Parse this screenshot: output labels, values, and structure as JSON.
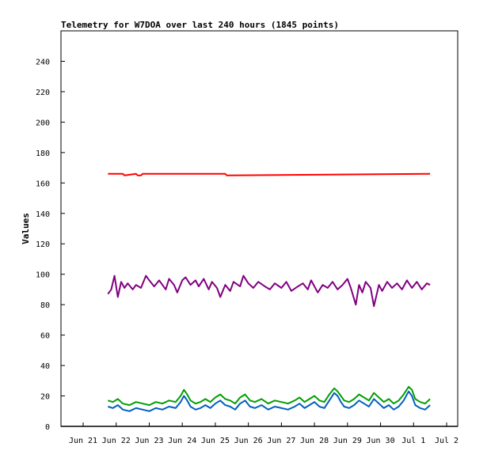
{
  "chart_data": {
    "type": "line",
    "title": "Telemetry for W7DOA over last 240 hours (1845 points)",
    "xlabel": "",
    "ylabel": "Values",
    "x_ticks": [
      "Jun 21",
      "Jun 22",
      "Jun 23",
      "Jun 24",
      "Jun 25",
      "Jun 26",
      "Jun 27",
      "Jun 28",
      "Jun 29",
      "Jun 30",
      "Jul 1",
      "Jul 2"
    ],
    "y_ticks": [
      "0",
      "20",
      "40",
      "60",
      "80",
      "100",
      "120",
      "140",
      "160",
      "180",
      "200",
      "220",
      "240"
    ],
    "xlim": [
      0,
      11
    ],
    "ylim": [
      0,
      260
    ],
    "grid": false,
    "legend": "none",
    "series": [
      {
        "color": "#ff0000",
        "x": [
          0.75,
          1.2,
          1.25,
          1.6,
          1.65,
          1.75,
          1.8,
          4.3,
          4.35,
          10.5
        ],
        "values": [
          166,
          166,
          165,
          166,
          165,
          165,
          166,
          166,
          165,
          166
        ]
      },
      {
        "color": "#800080",
        "x": [
          0.75,
          0.85,
          0.95,
          1.05,
          1.15,
          1.25,
          1.35,
          1.5,
          1.6,
          1.75,
          1.9,
          2.0,
          2.15,
          2.3,
          2.5,
          2.6,
          2.75,
          2.85,
          3.0,
          3.1,
          3.25,
          3.4,
          3.5,
          3.65,
          3.8,
          3.9,
          4.05,
          4.15,
          4.3,
          4.45,
          4.55,
          4.75,
          4.85,
          5.0,
          5.15,
          5.3,
          5.5,
          5.65,
          5.8,
          6.0,
          6.15,
          6.3,
          6.5,
          6.65,
          6.8,
          6.9,
          7.1,
          7.25,
          7.4,
          7.55,
          7.7,
          7.85,
          8.0,
          8.1,
          8.25,
          8.35,
          8.45,
          8.55,
          8.7,
          8.8,
          8.95,
          9.05,
          9.2,
          9.35,
          9.5,
          9.65,
          9.8,
          9.95,
          10.1,
          10.25,
          10.4,
          10.5
        ],
        "values": [
          87,
          90,
          99,
          85,
          95,
          91,
          94,
          90,
          93,
          91,
          99,
          96,
          92,
          96,
          90,
          97,
          93,
          88,
          96,
          98,
          93,
          96,
          92,
          97,
          90,
          95,
          91,
          85,
          93,
          89,
          95,
          92,
          99,
          94,
          91,
          95,
          92,
          90,
          94,
          91,
          95,
          89,
          92,
          94,
          90,
          96,
          88,
          93,
          91,
          95,
          90,
          93,
          97,
          91,
          80,
          93,
          88,
          95,
          91,
          79,
          93,
          89,
          95,
          91,
          94,
          90,
          96,
          91,
          95,
          90,
          94,
          93
        ]
      },
      {
        "color": "#00a000",
        "x": [
          0.75,
          0.9,
          1.05,
          1.2,
          1.4,
          1.6,
          1.8,
          2.0,
          2.2,
          2.4,
          2.6,
          2.8,
          2.95,
          3.05,
          3.15,
          3.25,
          3.4,
          3.55,
          3.7,
          3.85,
          4.0,
          4.15,
          4.3,
          4.45,
          4.6,
          4.75,
          4.9,
          5.05,
          5.2,
          5.4,
          5.6,
          5.8,
          6.0,
          6.2,
          6.4,
          6.55,
          6.7,
          6.85,
          7.0,
          7.15,
          7.3,
          7.45,
          7.6,
          7.7,
          7.8,
          7.9,
          8.05,
          8.2,
          8.35,
          8.5,
          8.65,
          8.8,
          8.95,
          9.1,
          9.25,
          9.4,
          9.55,
          9.7,
          9.85,
          9.95,
          10.05,
          10.2,
          10.35,
          10.5
        ],
        "values": [
          17,
          16,
          18,
          15,
          14,
          16,
          15,
          14,
          16,
          15,
          17,
          16,
          20,
          24,
          21,
          17,
          15,
          16,
          18,
          16,
          19,
          21,
          18,
          17,
          15,
          19,
          21,
          17,
          16,
          18,
          15,
          17,
          16,
          15,
          17,
          19,
          16,
          18,
          20,
          17,
          16,
          21,
          25,
          23,
          20,
          17,
          16,
          18,
          21,
          19,
          17,
          22,
          19,
          16,
          18,
          15,
          17,
          21,
          26,
          24,
          18,
          16,
          15,
          18
        ]
      },
      {
        "color": "#0060c0",
        "x": [
          0.75,
          0.9,
          1.05,
          1.2,
          1.4,
          1.6,
          1.8,
          2.0,
          2.2,
          2.4,
          2.6,
          2.8,
          2.95,
          3.05,
          3.15,
          3.25,
          3.4,
          3.55,
          3.7,
          3.85,
          4.0,
          4.15,
          4.3,
          4.45,
          4.6,
          4.75,
          4.9,
          5.05,
          5.2,
          5.4,
          5.6,
          5.8,
          6.0,
          6.2,
          6.4,
          6.55,
          6.7,
          6.85,
          7.0,
          7.15,
          7.3,
          7.45,
          7.6,
          7.7,
          7.8,
          7.9,
          8.05,
          8.2,
          8.35,
          8.5,
          8.65,
          8.8,
          8.95,
          9.1,
          9.25,
          9.4,
          9.55,
          9.7,
          9.85,
          9.95,
          10.05,
          10.2,
          10.35,
          10.5
        ],
        "values": [
          13,
          12,
          14,
          11,
          10,
          12,
          11,
          10,
          12,
          11,
          13,
          12,
          16,
          20,
          17,
          13,
          11,
          12,
          14,
          12,
          15,
          17,
          14,
          13,
          11,
          15,
          17,
          13,
          12,
          14,
          11,
          13,
          12,
          11,
          13,
          15,
          12,
          14,
          16,
          13,
          12,
          17,
          22,
          20,
          16,
          13,
          12,
          14,
          17,
          15,
          13,
          18,
          15,
          12,
          14,
          11,
          13,
          17,
          23,
          20,
          14,
          12,
          11,
          14
        ]
      }
    ]
  }
}
